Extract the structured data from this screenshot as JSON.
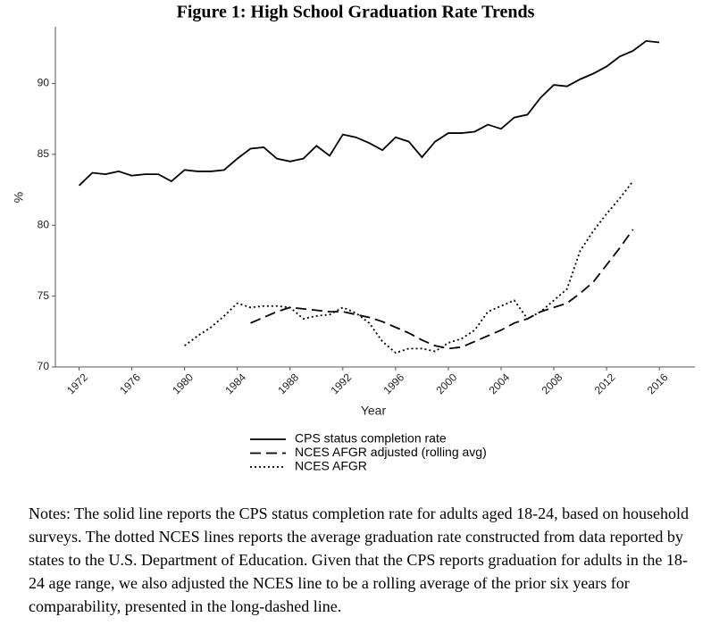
{
  "chart_data": {
    "type": "line",
    "title": "Figure 1: High School Graduation Rate Trends",
    "x_label": "Year",
    "y_label": "%",
    "x": [
      1972,
      1973,
      1974,
      1975,
      1976,
      1977,
      1978,
      1979,
      1980,
      1981,
      1982,
      1983,
      1984,
      1985,
      1986,
      1987,
      1988,
      1989,
      1990,
      1991,
      1992,
      1993,
      1994,
      1995,
      1996,
      1997,
      1998,
      1999,
      2000,
      2001,
      2002,
      2003,
      2004,
      2005,
      2006,
      2007,
      2008,
      2009,
      2010,
      2011,
      2012,
      2013,
      2014,
      2015,
      2016
    ],
    "series": [
      {
        "name": "CPS status completion rate",
        "color": "#000000",
        "style": "solid",
        "values": [
          82.8,
          83.7,
          83.6,
          83.8,
          83.5,
          83.6,
          83.6,
          83.1,
          83.9,
          83.8,
          83.8,
          83.9,
          84.7,
          85.4,
          85.5,
          84.7,
          84.5,
          84.7,
          85.6,
          84.9,
          86.4,
          86.2,
          85.8,
          85.3,
          86.2,
          85.9,
          84.8,
          85.9,
          86.5,
          86.5,
          86.6,
          87.1,
          86.8,
          87.6,
          87.8,
          89.0,
          89.9,
          89.8,
          90.3,
          90.7,
          91.2,
          91.9,
          92.3,
          93.0,
          92.9
        ]
      },
      {
        "name": "NCES AFGR adjusted (rolling avg)",
        "color": "#000000",
        "style": "dashed",
        "values": [
          null,
          null,
          null,
          null,
          null,
          null,
          null,
          null,
          null,
          null,
          null,
          null,
          null,
          73.1,
          73.5,
          73.9,
          74.2,
          74.1,
          74.0,
          73.9,
          73.9,
          73.7,
          73.5,
          73.2,
          72.8,
          72.4,
          71.9,
          71.5,
          71.3,
          71.4,
          71.8,
          72.2,
          72.6,
          73.1,
          73.4,
          73.9,
          74.2,
          74.5,
          75.2,
          76.0,
          77.2,
          78.4,
          79.7,
          null,
          null
        ]
      },
      {
        "name": "NCES AFGR",
        "color": "#000000",
        "style": "dotted",
        "values": [
          null,
          null,
          null,
          null,
          null,
          null,
          null,
          null,
          71.5,
          72.2,
          72.8,
          73.6,
          74.5,
          74.2,
          74.3,
          74.3,
          74.2,
          73.4,
          73.6,
          73.7,
          74.2,
          73.8,
          73.1,
          71.8,
          71.0,
          71.3,
          71.3,
          71.1,
          71.7,
          72.0,
          72.6,
          73.9,
          74.3,
          74.7,
          73.4,
          73.9,
          74.7,
          75.5,
          78.2,
          79.6,
          80.8,
          81.9,
          83.1,
          null,
          null
        ]
      }
    ],
    "xlim": [
      1970.2,
      2018.7
    ],
    "ylim": [
      70,
      94
    ],
    "xticks": [
      1972,
      1976,
      1980,
      1984,
      1988,
      1992,
      1996,
      2000,
      2004,
      2008,
      2012,
      2016
    ],
    "yticks": [
      70,
      75,
      80,
      85,
      90
    ],
    "grid": false,
    "legend": "bottom"
  },
  "notes": "Notes: The solid line reports the CPS status completion rate for adults aged 18-24, based on household surveys. The dotted NCES lines reports the average graduation rate constructed from data reported by states to the U.S. Department of Education. Given that the CPS reports graduation for adults in the 18-24 age range, we also adjusted the NCES line to be a rolling average of the prior six years for comparability, presented in the long-dashed line."
}
